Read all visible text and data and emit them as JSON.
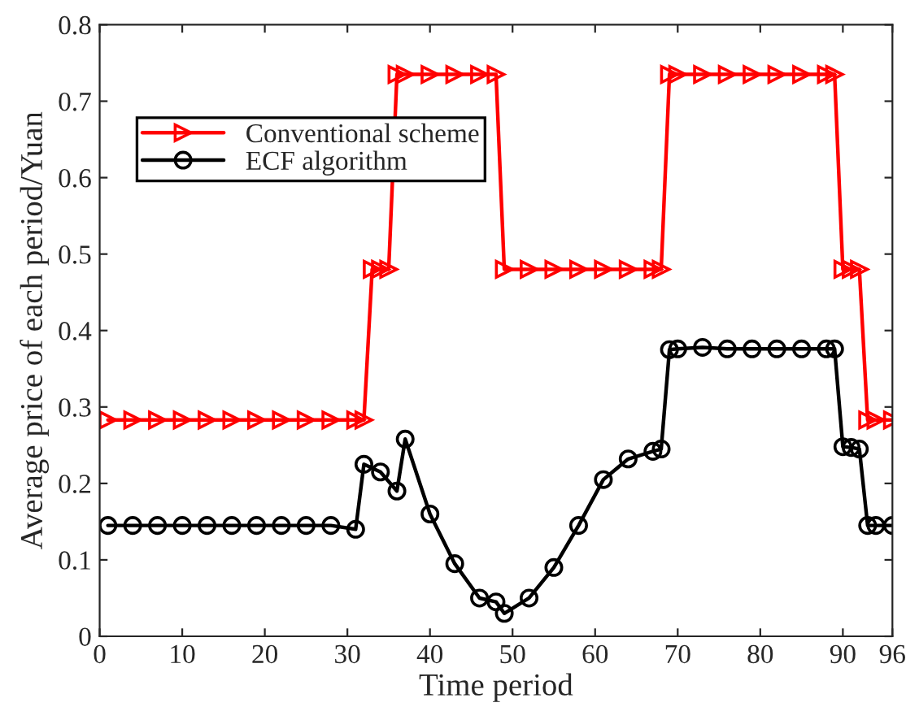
{
  "chart_data": {
    "type": "line",
    "xlabel": "Time period",
    "ylabel": "Average price of each period/Yuan",
    "xlim": [
      0,
      96
    ],
    "xticks": [
      0,
      10,
      20,
      30,
      40,
      50,
      60,
      70,
      80,
      90,
      96
    ],
    "ylim": [
      0,
      0.8
    ],
    "yticks": [
      0,
      0.1,
      0.2,
      0.3,
      0.4,
      0.5,
      0.6,
      0.7,
      0.8
    ],
    "grid": false,
    "legend": "top left",
    "line_style": "solid",
    "series": [
      {
        "name": "Conventional scheme",
        "color": "#ff0000",
        "marker": "triangle",
        "x": [
          1,
          4,
          7,
          10,
          13,
          16,
          19,
          22,
          25,
          28,
          31,
          32,
          33,
          34,
          35,
          36,
          37,
          40,
          43,
          46,
          48,
          49,
          52,
          55,
          58,
          61,
          64,
          67,
          68,
          69,
          70,
          73,
          76,
          79,
          82,
          85,
          88,
          89,
          90,
          91,
          92,
          93,
          94,
          96
        ],
        "values": [
          0.283,
          0.283,
          0.283,
          0.283,
          0.283,
          0.283,
          0.283,
          0.283,
          0.283,
          0.283,
          0.283,
          0.283,
          0.48,
          0.48,
          0.48,
          0.735,
          0.735,
          0.735,
          0.735,
          0.735,
          0.735,
          0.48,
          0.48,
          0.48,
          0.48,
          0.48,
          0.48,
          0.48,
          0.48,
          0.735,
          0.735,
          0.735,
          0.735,
          0.735,
          0.735,
          0.735,
          0.735,
          0.735,
          0.48,
          0.48,
          0.48,
          0.283,
          0.283,
          0.283
        ]
      },
      {
        "name": "ECF algorithm",
        "color": "#000000",
        "marker": "circle",
        "x": [
          1,
          4,
          7,
          10,
          13,
          16,
          19,
          22,
          25,
          28,
          31,
          32,
          34,
          36,
          37,
          40,
          43,
          46,
          48,
          49,
          52,
          55,
          58,
          61,
          64,
          67,
          68,
          69,
          70,
          73,
          76,
          79,
          82,
          85,
          88,
          89,
          90,
          91,
          92,
          93,
          94,
          96
        ],
        "values": [
          0.145,
          0.145,
          0.145,
          0.145,
          0.145,
          0.145,
          0.145,
          0.145,
          0.145,
          0.145,
          0.14,
          0.225,
          0.215,
          0.19,
          0.258,
          0.16,
          0.095,
          0.05,
          0.045,
          0.03,
          0.05,
          0.09,
          0.145,
          0.205,
          0.232,
          0.242,
          0.245,
          0.375,
          0.376,
          0.378,
          0.376,
          0.376,
          0.376,
          0.376,
          0.376,
          0.376,
          0.248,
          0.247,
          0.245,
          0.145,
          0.145,
          0.145
        ]
      }
    ]
  }
}
